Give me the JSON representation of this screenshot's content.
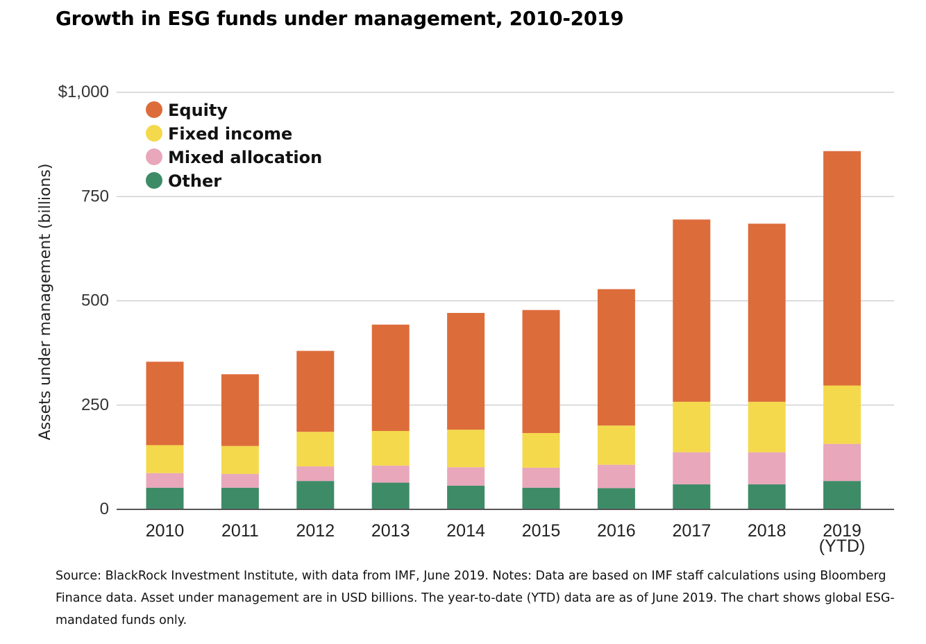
{
  "title": "Growth in ESG funds under management, 2010-2019",
  "note": "Source: BlackRock Investment Institute, with data from IMF, June 2019. Notes: Data are based on IMF staff calculations using Bloomberg Finance data. Asset under management are in USD billions. The year-to-date (YTD) data are as of June 2019. The chart shows global ESG-mandated funds only.",
  "chart_data": {
    "type": "bar",
    "stacked": true,
    "title": "Growth in ESG funds under management, 2010-2019",
    "ylabel": "Assets under management (billions)",
    "xlabel": "",
    "ylim": [
      0,
      1000
    ],
    "yticks": [
      0,
      250,
      500,
      750,
      1000
    ],
    "ytick_labels": [
      "0",
      "250",
      "500",
      "750",
      "$1,000"
    ],
    "grid": true,
    "legend_position": "top-left",
    "categories": [
      [
        "2010"
      ],
      [
        "2011"
      ],
      [
        "2012"
      ],
      [
        "2013"
      ],
      [
        "2014"
      ],
      [
        "2015"
      ],
      [
        "2016"
      ],
      [
        "2017"
      ],
      [
        "2018"
      ],
      [
        "2019",
        "(YTD)"
      ]
    ],
    "series": [
      {
        "name": "Other",
        "color": "#3e8b67",
        "values": [
          52,
          52,
          68,
          64,
          57,
          52,
          51,
          60,
          60,
          68
        ]
      },
      {
        "name": "Mixed allocation",
        "color": "#e8a7bb",
        "values": [
          35,
          33,
          35,
          41,
          44,
          48,
          56,
          77,
          77,
          89
        ]
      },
      {
        "name": "Fixed income",
        "color": "#f4d94c",
        "values": [
          67,
          67,
          83,
          83,
          90,
          83,
          94,
          121,
          121,
          140
        ]
      },
      {
        "name": "Equity",
        "color": "#dd6c3b",
        "values": [
          200,
          172,
          194,
          255,
          280,
          295,
          327,
          437,
          427,
          562
        ]
      }
    ],
    "legend_order": [
      "Equity",
      "Fixed income",
      "Mixed allocation",
      "Other"
    ]
  }
}
